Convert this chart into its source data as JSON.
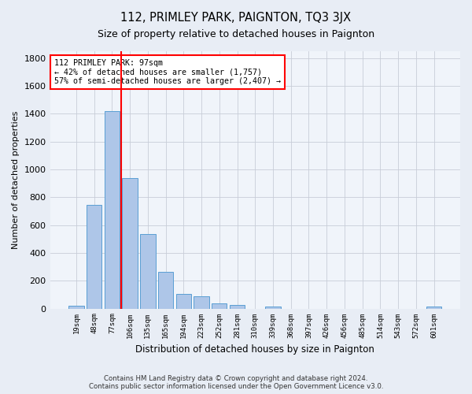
{
  "title": "112, PRIMLEY PARK, PAIGNTON, TQ3 3JX",
  "subtitle": "Size of property relative to detached houses in Paignton",
  "xlabel": "Distribution of detached houses by size in Paignton",
  "ylabel": "Number of detached properties",
  "bar_labels": [
    "19sqm",
    "48sqm",
    "77sqm",
    "106sqm",
    "135sqm",
    "165sqm",
    "194sqm",
    "223sqm",
    "252sqm",
    "281sqm",
    "310sqm",
    "339sqm",
    "368sqm",
    "397sqm",
    "426sqm",
    "456sqm",
    "485sqm",
    "514sqm",
    "543sqm",
    "572sqm",
    "601sqm"
  ],
  "bar_values": [
    20,
    745,
    1420,
    940,
    535,
    265,
    105,
    90,
    38,
    27,
    0,
    16,
    0,
    0,
    0,
    0,
    0,
    0,
    0,
    0,
    15
  ],
  "bar_color": "#aec6e8",
  "bar_edge_color": "#5a9fd4",
  "redline_index": 2.5,
  "annotation_text": "112 PRIMLEY PARK: 97sqm\n← 42% of detached houses are smaller (1,757)\n57% of semi-detached houses are larger (2,407) →",
  "annotation_box_color": "white",
  "annotation_box_edge_color": "red",
  "ylim": [
    0,
    1850
  ],
  "yticks": [
    0,
    200,
    400,
    600,
    800,
    1000,
    1200,
    1400,
    1600,
    1800
  ],
  "footer": "Contains HM Land Registry data © Crown copyright and database right 2024.\nContains public sector information licensed under the Open Government Licence v3.0.",
  "bg_color": "#e8edf5",
  "plot_bg_color": "#f0f4fa",
  "grid_color": "#c8cdd8"
}
